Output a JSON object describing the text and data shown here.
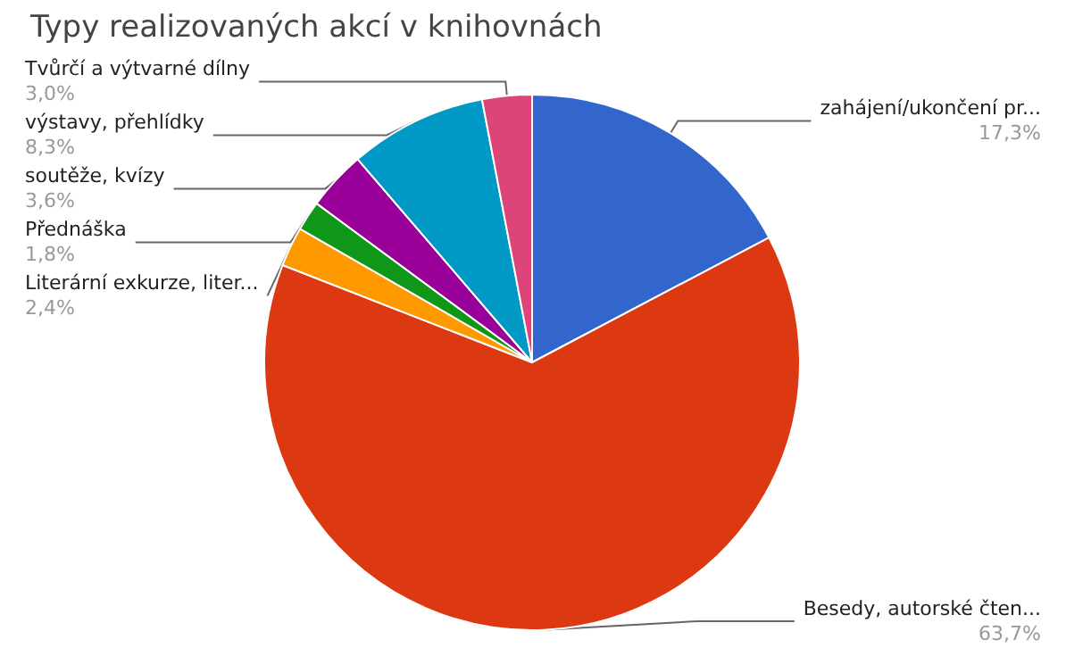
{
  "chart_data": {
    "type": "pie",
    "title": "Typy realizovaných akcí v knihovnách",
    "categories": [
      "zahájení/ukončení pr...",
      "Besedy, autorské čten...",
      "Literární exkurze, liter...",
      "Přednáška",
      "soutěže, kvízy",
      "výstavy, přehlídky",
      "Tvůrčí a výtvarné dílny"
    ],
    "values": [
      17.3,
      63.7,
      2.4,
      1.8,
      3.6,
      8.3,
      3.0
    ],
    "value_labels": [
      "17,3%",
      "63,7%",
      "2,4%",
      "1,8%",
      "3,6%",
      "8,3%",
      "3,0%"
    ],
    "colors": [
      "#3366cc",
      "#dc3912",
      "#ff9900",
      "#109618",
      "#990099",
      "#0099c6",
      "#dd4477"
    ],
    "legend": false
  }
}
